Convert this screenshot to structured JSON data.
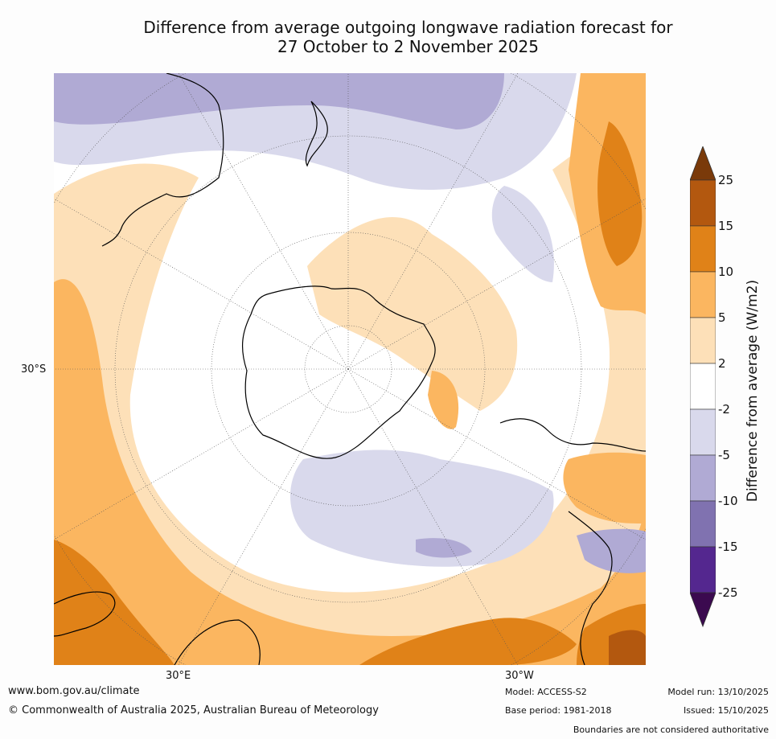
{
  "title": {
    "line1": "Difference from average outgoing longwave radiation forecast for",
    "line2": "27 October to 2 November 2025"
  },
  "map": {
    "projection": "south-polar stereographic",
    "lat_label": "30°S",
    "lon_labels": [
      "30°E",
      "30°W"
    ]
  },
  "colorbar": {
    "title": "Difference from average (W/m2)",
    "ticks": [
      "25",
      "15",
      "10",
      "5",
      "2",
      "-2",
      "-5",
      "-10",
      "-15",
      "-25"
    ],
    "colors": {
      "gt25": "#7a3a0a",
      "15_25": "#b3580f",
      "10_15": "#e08218",
      "5_10": "#fbb660",
      "2_5": "#fde0b8",
      "m2_2": "#ffffff",
      "m5_m2": "#d9d9ec",
      "m10_m5": "#b0aad4",
      "m15_m10": "#8072b0",
      "m25_m15": "#54278f",
      "lt_m25": "#3b0a4f"
    }
  },
  "footer": {
    "website": "www.bom.gov.au/climate",
    "copyright": "© Commonwealth of Australia 2025, Australian Bureau of Meteorology",
    "model": "Model: ACCESS-S2",
    "base_period": "Base period: 1981-2018",
    "model_run": "Model run: 13/10/2025",
    "issued": "Issued: 15/10/2025",
    "disclaimer": "Boundaries are not considered authoritative"
  }
}
